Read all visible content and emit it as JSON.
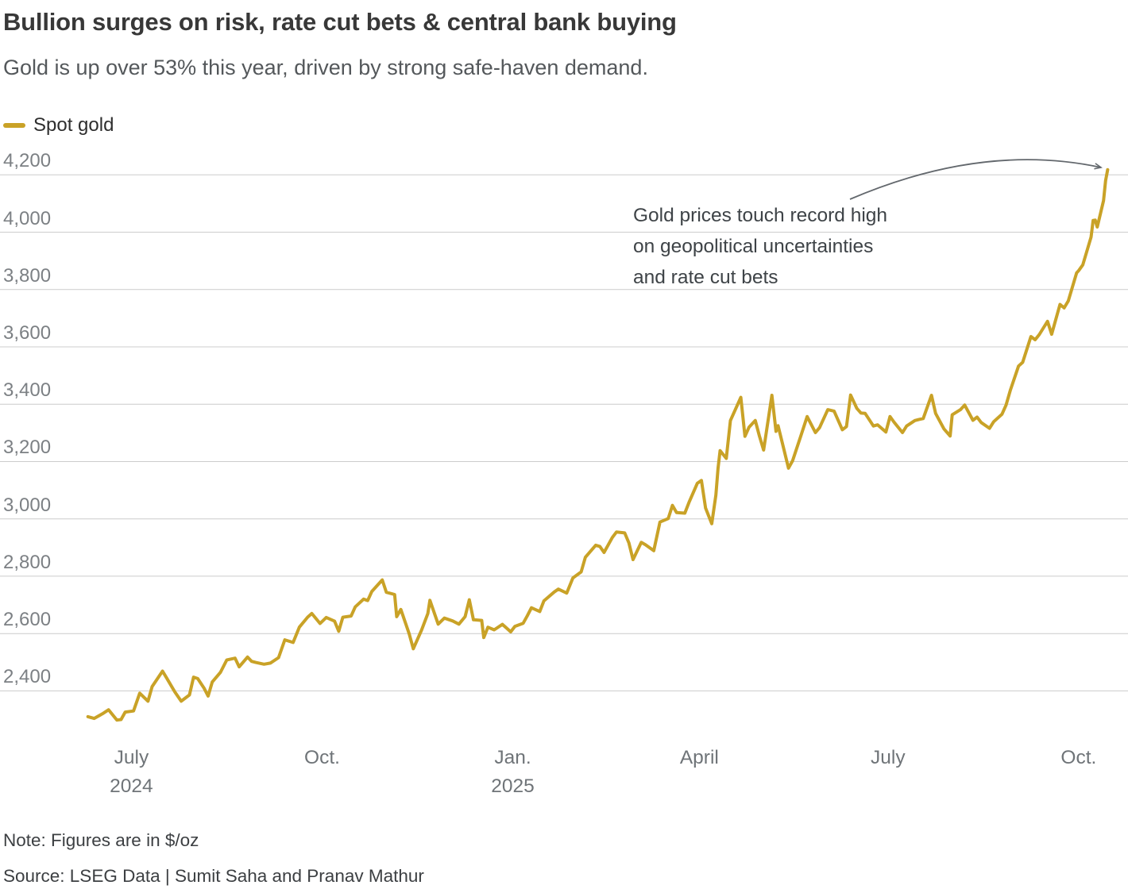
{
  "chart_data": {
    "type": "line",
    "title": "Bullion surges on risk, rate cut bets & central bank buying",
    "subtitle": "Gold is up over 53% this year, driven by strong safe-haven demand.",
    "annotation": "Gold prices touch record high on geopolitical uncertainties and rate cut bets",
    "unit": "$/oz",
    "grid": true,
    "legend_position": "top-left",
    "x_domain": [
      "2024-06-04",
      "2025-10-16"
    ],
    "ylim": [
      2235,
      4270
    ],
    "y_ticks": [
      2400,
      2600,
      2800,
      3000,
      3200,
      3400,
      3600,
      3800,
      4000,
      4200
    ],
    "x_ticks": [
      {
        "date": "2024-07-01",
        "label": "July",
        "sublabel": "2024"
      },
      {
        "date": "2024-10-01",
        "label": "Oct."
      },
      {
        "date": "2025-01-01",
        "label": "Jan.",
        "sublabel": "2025"
      },
      {
        "date": "2025-04-01",
        "label": "April"
      },
      {
        "date": "2025-07-01",
        "label": "July"
      },
      {
        "date": "2025-10-01",
        "label": "Oct."
      }
    ],
    "series": [
      {
        "name": "Spot gold",
        "color": "#C9A227",
        "points": [
          [
            "2024-06-10",
            2310
          ],
          [
            "2024-06-13",
            2304
          ],
          [
            "2024-06-17",
            2320
          ],
          [
            "2024-06-20",
            2334
          ],
          [
            "2024-06-24",
            2298
          ],
          [
            "2024-06-26",
            2300
          ],
          [
            "2024-06-28",
            2326
          ],
          [
            "2024-07-02",
            2330
          ],
          [
            "2024-07-05",
            2392
          ],
          [
            "2024-07-09",
            2364
          ],
          [
            "2024-07-11",
            2415
          ],
          [
            "2024-07-16",
            2469
          ],
          [
            "2024-07-18",
            2445
          ],
          [
            "2024-07-22",
            2396
          ],
          [
            "2024-07-25",
            2364
          ],
          [
            "2024-07-29",
            2386
          ],
          [
            "2024-07-31",
            2448
          ],
          [
            "2024-08-02",
            2443
          ],
          [
            "2024-08-05",
            2410
          ],
          [
            "2024-08-07",
            2382
          ],
          [
            "2024-08-09",
            2431
          ],
          [
            "2024-08-13",
            2465
          ],
          [
            "2024-08-16",
            2508
          ],
          [
            "2024-08-20",
            2514
          ],
          [
            "2024-08-22",
            2484
          ],
          [
            "2024-08-26",
            2518
          ],
          [
            "2024-08-28",
            2503
          ],
          [
            "2024-08-30",
            2499
          ],
          [
            "2024-09-03",
            2493
          ],
          [
            "2024-09-06",
            2497
          ],
          [
            "2024-09-10",
            2516
          ],
          [
            "2024-09-13",
            2578
          ],
          [
            "2024-09-17",
            2569
          ],
          [
            "2024-09-20",
            2622
          ],
          [
            "2024-09-24",
            2657
          ],
          [
            "2024-09-26",
            2670
          ],
          [
            "2024-09-30",
            2635
          ],
          [
            "2024-10-03",
            2656
          ],
          [
            "2024-10-07",
            2643
          ],
          [
            "2024-10-09",
            2608
          ],
          [
            "2024-10-11",
            2657
          ],
          [
            "2024-10-15",
            2661
          ],
          [
            "2024-10-17",
            2693
          ],
          [
            "2024-10-21",
            2720
          ],
          [
            "2024-10-23",
            2715
          ],
          [
            "2024-10-25",
            2747
          ],
          [
            "2024-10-30",
            2787
          ],
          [
            "2024-11-01",
            2744
          ],
          [
            "2024-11-05",
            2736
          ],
          [
            "2024-11-06",
            2659
          ],
          [
            "2024-11-08",
            2684
          ],
          [
            "2024-11-12",
            2599
          ],
          [
            "2024-11-14",
            2547
          ],
          [
            "2024-11-18",
            2612
          ],
          [
            "2024-11-21",
            2670
          ],
          [
            "2024-11-22",
            2716
          ],
          [
            "2024-11-26",
            2633
          ],
          [
            "2024-11-29",
            2654
          ],
          [
            "2024-12-03",
            2644
          ],
          [
            "2024-12-06",
            2633
          ],
          [
            "2024-12-09",
            2659
          ],
          [
            "2024-12-11",
            2718
          ],
          [
            "2024-12-13",
            2648
          ],
          [
            "2024-12-17",
            2646
          ],
          [
            "2024-12-18",
            2586
          ],
          [
            "2024-12-20",
            2622
          ],
          [
            "2024-12-23",
            2613
          ],
          [
            "2024-12-27",
            2632
          ],
          [
            "2024-12-31",
            2606
          ],
          [
            "2025-01-02",
            2625
          ],
          [
            "2025-01-06",
            2636
          ],
          [
            "2025-01-08",
            2662
          ],
          [
            "2025-01-10",
            2690
          ],
          [
            "2025-01-14",
            2677
          ],
          [
            "2025-01-16",
            2714
          ],
          [
            "2025-01-21",
            2745
          ],
          [
            "2025-01-23",
            2755
          ],
          [
            "2025-01-27",
            2741
          ],
          [
            "2025-01-30",
            2794
          ],
          [
            "2025-02-03",
            2815
          ],
          [
            "2025-02-05",
            2866
          ],
          [
            "2025-02-10",
            2908
          ],
          [
            "2025-02-12",
            2904
          ],
          [
            "2025-02-14",
            2883
          ],
          [
            "2025-02-18",
            2935
          ],
          [
            "2025-02-20",
            2954
          ],
          [
            "2025-02-24",
            2951
          ],
          [
            "2025-02-26",
            2916
          ],
          [
            "2025-02-28",
            2858
          ],
          [
            "2025-03-04",
            2918
          ],
          [
            "2025-03-06",
            2910
          ],
          [
            "2025-03-10",
            2889
          ],
          [
            "2025-03-13",
            2989
          ],
          [
            "2025-03-17",
            3001
          ],
          [
            "2025-03-19",
            3047
          ],
          [
            "2025-03-21",
            3022
          ],
          [
            "2025-03-25",
            3020
          ],
          [
            "2025-03-27",
            3057
          ],
          [
            "2025-03-31",
            3124
          ],
          [
            "2025-04-02",
            3134
          ],
          [
            "2025-04-04",
            3038
          ],
          [
            "2025-04-07",
            2983
          ],
          [
            "2025-04-09",
            3083
          ],
          [
            "2025-04-10",
            3176
          ],
          [
            "2025-04-11",
            3238
          ],
          [
            "2025-04-14",
            3211
          ],
          [
            "2025-04-16",
            3343
          ],
          [
            "2025-04-21",
            3424
          ],
          [
            "2025-04-23",
            3288
          ],
          [
            "2025-04-25",
            3320
          ],
          [
            "2025-04-28",
            3343
          ],
          [
            "2025-04-30",
            3289
          ],
          [
            "2025-05-02",
            3240
          ],
          [
            "2025-05-06",
            3431
          ],
          [
            "2025-05-08",
            3305
          ],
          [
            "2025-05-09",
            3325
          ],
          [
            "2025-05-12",
            3236
          ],
          [
            "2025-05-14",
            3177
          ],
          [
            "2025-05-16",
            3203
          ],
          [
            "2025-05-20",
            3290
          ],
          [
            "2025-05-23",
            3357
          ],
          [
            "2025-05-27",
            3301
          ],
          [
            "2025-05-29",
            3318
          ],
          [
            "2025-06-02",
            3381
          ],
          [
            "2025-06-05",
            3376
          ],
          [
            "2025-06-09",
            3311
          ],
          [
            "2025-06-11",
            3322
          ],
          [
            "2025-06-13",
            3432
          ],
          [
            "2025-06-16",
            3385
          ],
          [
            "2025-06-18",
            3369
          ],
          [
            "2025-06-20",
            3368
          ],
          [
            "2025-06-24",
            3324
          ],
          [
            "2025-06-26",
            3328
          ],
          [
            "2025-06-30",
            3303
          ],
          [
            "2025-07-02",
            3357
          ],
          [
            "2025-07-04",
            3337
          ],
          [
            "2025-07-08",
            3301
          ],
          [
            "2025-07-10",
            3324
          ],
          [
            "2025-07-14",
            3343
          ],
          [
            "2025-07-16",
            3347
          ],
          [
            "2025-07-18",
            3350
          ],
          [
            "2025-07-22",
            3431
          ],
          [
            "2025-07-24",
            3368
          ],
          [
            "2025-07-28",
            3314
          ],
          [
            "2025-07-31",
            3289
          ],
          [
            "2025-08-01",
            3363
          ],
          [
            "2025-08-05",
            3381
          ],
          [
            "2025-08-07",
            3397
          ],
          [
            "2025-08-11",
            3344
          ],
          [
            "2025-08-13",
            3355
          ],
          [
            "2025-08-15",
            3336
          ],
          [
            "2025-08-19",
            3316
          ],
          [
            "2025-08-21",
            3339
          ],
          [
            "2025-08-25",
            3365
          ],
          [
            "2025-08-27",
            3397
          ],
          [
            "2025-08-29",
            3448
          ],
          [
            "2025-09-02",
            3533
          ],
          [
            "2025-09-04",
            3546
          ],
          [
            "2025-09-08",
            3636
          ],
          [
            "2025-09-10",
            3625
          ],
          [
            "2025-09-12",
            3643
          ],
          [
            "2025-09-16",
            3689
          ],
          [
            "2025-09-18",
            3644
          ],
          [
            "2025-09-22",
            3748
          ],
          [
            "2025-09-24",
            3736
          ],
          [
            "2025-09-26",
            3760
          ],
          [
            "2025-09-30",
            3858
          ],
          [
            "2025-10-01",
            3866
          ],
          [
            "2025-10-03",
            3886
          ],
          [
            "2025-10-07",
            3983
          ],
          [
            "2025-10-08",
            4041
          ],
          [
            "2025-10-09",
            4042
          ],
          [
            "2025-10-10",
            4018
          ],
          [
            "2025-10-13",
            4110
          ],
          [
            "2025-10-14",
            4180
          ],
          [
            "2025-10-15",
            4218
          ]
        ]
      }
    ]
  },
  "footer": {
    "note": "Note: Figures are in $/oz",
    "source": "Source: LSEG Data | Sumit Saha and Pranav Mathur"
  },
  "colors": {
    "line": "#C9A227",
    "grid": "#cccccc",
    "arrow": "#63686d"
  }
}
